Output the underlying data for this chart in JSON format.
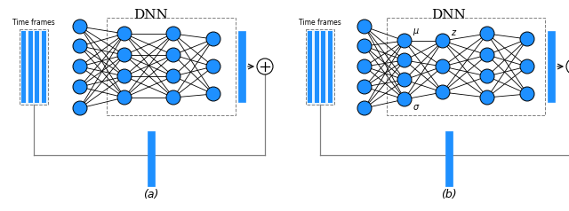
{
  "blue": "#1E90FF",
  "black": "#000000",
  "gray": "#808080",
  "bg": "#ffffff",
  "title_a": "(a)",
  "title_b": "(b)",
  "dnn_label": "DNN",
  "time_label": "Time frames",
  "fig_w": 6.4,
  "fig_h": 2.38,
  "dpi": 100
}
